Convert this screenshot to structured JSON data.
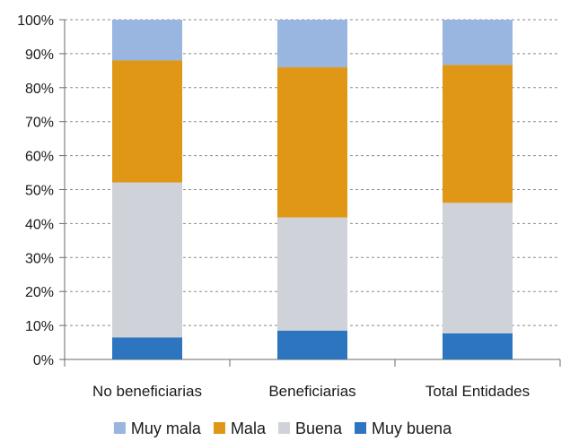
{
  "chart_data": {
    "type": "bar",
    "stacked": true,
    "categories": [
      "No beneficiarias",
      "Beneficiarias",
      "Total Entidades"
    ],
    "series": [
      {
        "name": "Muy buena",
        "color": "#2e75c0",
        "values": [
          6.5,
          8.5,
          7.7
        ]
      },
      {
        "name": "Buena",
        "color": "#d0d2d9",
        "values": [
          45.6,
          33.3,
          38.4
        ]
      },
      {
        "name": "Mala",
        "color": "#e09715",
        "values": [
          35.9,
          44.2,
          40.6
        ]
      },
      {
        "name": "Muy mala",
        "color": "#98b6e0",
        "values": [
          12.0,
          14.0,
          13.3
        ]
      }
    ],
    "ylim": [
      0,
      100
    ],
    "yticks": [
      "0%",
      "10%",
      "20%",
      "30%",
      "40%",
      "50%",
      "60%",
      "70%",
      "80%",
      "90%",
      "100%"
    ],
    "grid": "horizontal-dashed",
    "legend_position": "bottom",
    "legend_order": [
      "Muy mala",
      "Mala",
      "Buena",
      "Muy buena"
    ]
  }
}
